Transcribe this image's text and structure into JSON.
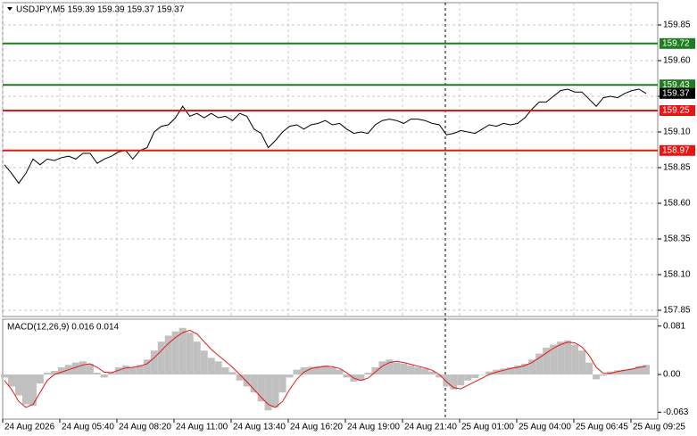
{
  "chart_data": [
    {
      "type": "line",
      "title": "USDJPY,M5  159.39 159.39 159.37 159.37",
      "color": "#000000",
      "values": [
        158.87,
        158.81,
        158.74,
        158.81,
        158.91,
        158.87,
        158.91,
        158.9,
        158.92,
        158.93,
        158.91,
        158.95,
        158.95,
        158.88,
        158.91,
        158.93,
        158.96,
        158.97,
        158.91,
        158.97,
        158.99,
        159.1,
        159.14,
        159.15,
        159.2,
        159.28,
        159.21,
        159.23,
        159.2,
        159.23,
        159.2,
        159.21,
        159.18,
        159.23,
        159.21,
        159.12,
        159.09,
        158.99,
        159.04,
        159.1,
        159.14,
        159.15,
        159.12,
        159.15,
        159.16,
        159.18,
        159.15,
        159.16,
        159.12,
        159.09,
        159.1,
        159.09,
        159.15,
        159.18,
        159.19,
        159.18,
        159.16,
        159.19,
        159.19,
        159.18,
        159.16,
        159.15,
        159.08,
        159.09,
        159.11,
        159.1,
        159.09,
        159.12,
        159.15,
        159.14,
        159.16,
        159.15,
        159.16,
        159.2,
        159.26,
        159.31,
        159.31,
        159.35,
        159.39,
        159.4,
        159.38,
        159.38,
        159.33,
        159.28,
        159.34,
        159.35,
        159.34,
        159.37,
        159.39,
        159.4,
        159.37
      ],
      "ylim": [
        157.8,
        160.0
      ],
      "yticks": [
        159.85,
        {
          "value": 159.6,
          "label": "159.60"
        },
        159.35,
        {
          "value": 159.1,
          "label": "159.10"
        },
        158.85,
        {
          "value": 158.6,
          "label": "158.60"
        },
        158.35,
        {
          "value": 158.1,
          "label": "158.10"
        },
        157.85
      ],
      "grid": true,
      "levels": [
        {
          "value": 159.72,
          "color": "#1e7d1e"
        },
        {
          "value": 159.43,
          "color": "#1e7d1e"
        },
        {
          "value": 159.25,
          "color": "#e81515"
        },
        {
          "value": 158.97,
          "color": "#e81515"
        }
      ],
      "last_price": 159.37
    },
    {
      "type": "bar",
      "title": "MACD(12,26,9) 0.016 0.014",
      "color": "#c0c0c0",
      "values": [
        -0.005,
        -0.02,
        -0.035,
        -0.05,
        -0.052,
        -0.015,
        0.003,
        0.006,
        0.012,
        0.016,
        0.02,
        0.022,
        0.018,
        0.003,
        -0.005,
        0.004,
        0.012,
        0.015,
        0.012,
        0.016,
        0.025,
        0.04,
        0.055,
        0.065,
        0.072,
        0.078,
        0.07,
        0.055,
        0.04,
        0.028,
        0.022,
        0.012,
        0.004,
        -0.01,
        -0.02,
        -0.03,
        -0.045,
        -0.06,
        -0.055,
        -0.03,
        -0.005,
        0.008,
        0.012,
        0.013,
        0.014,
        0.015,
        0.012,
        0.008,
        -0.005,
        -0.012,
        -0.01,
        0.003,
        0.012,
        0.022,
        0.025,
        0.02,
        0.018,
        0.015,
        0.012,
        0.01,
        0.005,
        -0.005,
        -0.02,
        -0.025,
        -0.018,
        -0.01,
        -0.006,
        0.0,
        0.005,
        0.008,
        0.01,
        0.012,
        0.015,
        0.018,
        0.025,
        0.035,
        0.045,
        0.05,
        0.055,
        0.057,
        0.05,
        0.04,
        0.02,
        -0.008,
        -0.002,
        0.005,
        0.007,
        0.008,
        0.01,
        0.014,
        0.016
      ],
      "signal": {
        "color": "#e81515",
        "values": [
          -0.01,
          -0.025,
          -0.045,
          -0.055,
          -0.05,
          -0.03,
          -0.01,
          0.0,
          0.004,
          0.008,
          0.012,
          0.016,
          0.018,
          0.012,
          0.004,
          0.003,
          0.007,
          0.011,
          0.012,
          0.014,
          0.018,
          0.028,
          0.04,
          0.052,
          0.062,
          0.07,
          0.074,
          0.068,
          0.055,
          0.042,
          0.032,
          0.022,
          0.012,
          0.0,
          -0.012,
          -0.025,
          -0.038,
          -0.05,
          -0.055,
          -0.045,
          -0.025,
          -0.008,
          0.004,
          0.01,
          0.012,
          0.014,
          0.013,
          0.01,
          0.003,
          -0.006,
          -0.01,
          -0.006,
          0.004,
          0.014,
          0.02,
          0.022,
          0.02,
          0.017,
          0.014,
          0.011,
          0.007,
          0.0,
          -0.012,
          -0.022,
          -0.024,
          -0.018,
          -0.012,
          -0.006,
          0.0,
          0.004,
          0.007,
          0.01,
          0.012,
          0.015,
          0.02,
          0.028,
          0.036,
          0.044,
          0.05,
          0.054,
          0.053,
          0.046,
          0.032,
          0.012,
          0.002,
          0.002,
          0.005,
          0.007,
          0.009,
          0.012,
          0.014
        ]
      },
      "ylim": [
        -0.073,
        0.094
      ],
      "yticks": [
        0.081,
        {
          "value": 0,
          "label": "0.00"
        },
        -0.063
      ]
    }
  ],
  "time_axis": {
    "labels": [
      "24 Aug 2026",
      "24 Aug 05:40",
      "24 Aug 08:20",
      "24 Aug 11:00",
      "24 Aug 13:40",
      "24 Aug 16:20",
      "24 Aug 19:00",
      "24 Aug 21:40",
      "25 Aug 01:00",
      "25 Aug 04:00",
      "25 Aug 06:45",
      "25 Aug 09:25"
    ]
  }
}
